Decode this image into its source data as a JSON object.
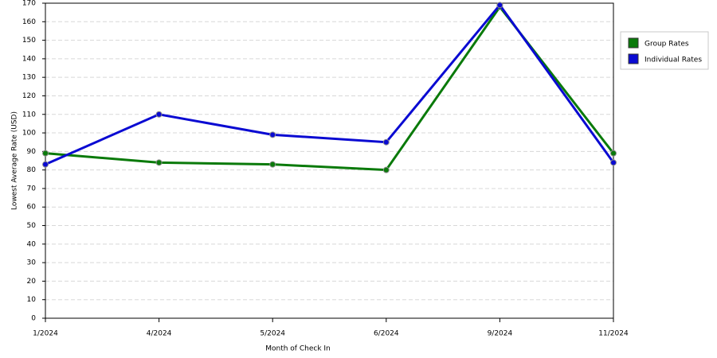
{
  "chart_data": {
    "type": "line",
    "x_label": "Month of Check In",
    "y_label": "Lowest Average Rate (USD)",
    "categories": [
      "1/2024",
      "4/2024",
      "5/2024",
      "6/2024",
      "9/2024",
      "11/2024"
    ],
    "series": [
      {
        "name": "Group Rates",
        "color": "#0a7a0a",
        "values": [
          89,
          84,
          83,
          80,
          168,
          89
        ]
      },
      {
        "name": "Individual Rates",
        "color": "#0a0ad2",
        "values": [
          83,
          110,
          99,
          95,
          169,
          84
        ]
      }
    ],
    "ylim": [
      0,
      170
    ],
    "yticks": [
      0,
      10,
      20,
      30,
      40,
      50,
      60,
      70,
      80,
      90,
      100,
      110,
      120,
      130,
      140,
      150,
      160,
      170
    ],
    "grid": true,
    "legend": "right"
  }
}
